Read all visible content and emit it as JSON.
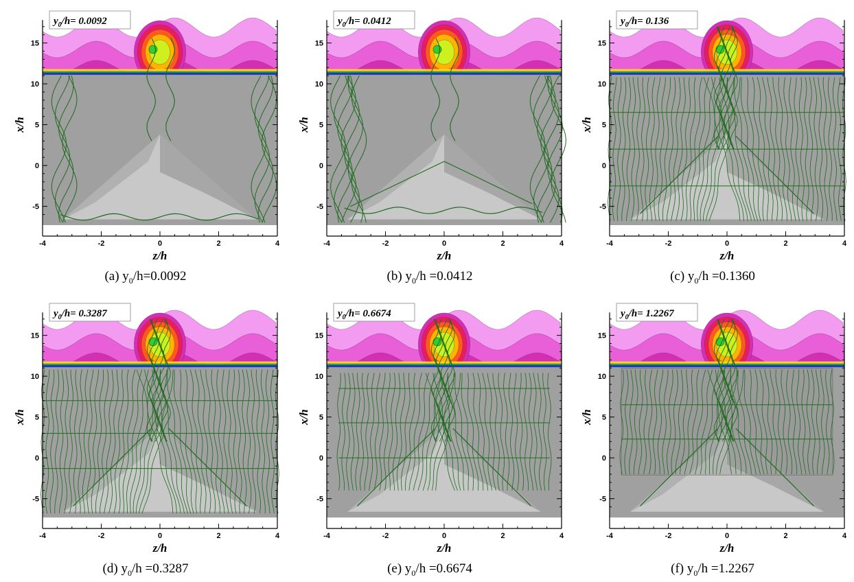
{
  "figure": {
    "x_axis_label": "z/h",
    "y_axis_label": "x/h",
    "x_ticks": [
      "-4",
      "-2",
      "0",
      "2",
      "4"
    ],
    "y_ticks": [
      "15",
      "10",
      "5",
      "0",
      "-5"
    ],
    "colors": {
      "contour_outer": "#f29bf0",
      "contour_2": "#e85fd8",
      "contour_3": "#d32fb4",
      "contour_4": "#e81e5a",
      "contour_5": "#ff5a1e",
      "contour_6": "#ffb400",
      "contour_core": "#cdf01e",
      "wall_band": "#1e3cb4",
      "floor": "#a0a0a0",
      "pyramid_light": "#c8c8c8",
      "pyramid_dark": "#8c8c8c",
      "streamline": "#1f6b1f"
    },
    "panels": [
      {
        "box_label": "y",
        "box_label_sub": "0",
        "box_label_value": "/h= 0.0092",
        "caption_prefix": "(a) y",
        "caption_sub": "0",
        "caption_suffix": "/h=0.0092",
        "mode": "a"
      },
      {
        "box_label": "y",
        "box_label_sub": "0",
        "box_label_value": "/h= 0.0412",
        "caption_prefix": "(b) y",
        "caption_sub": "0",
        "caption_suffix": "/h =0.0412",
        "mode": "b"
      },
      {
        "box_label": "y",
        "box_label_sub": "0",
        "box_label_value": "/h= 0.136",
        "caption_prefix": "(c) y",
        "caption_sub": "0",
        "caption_suffix": "/h =0.1360",
        "mode": "c"
      },
      {
        "box_label": "y",
        "box_label_sub": "0",
        "box_label_value": "/h= 0.3287",
        "caption_prefix": "(d) y",
        "caption_sub": "0",
        "caption_suffix": "/h =0.3287",
        "mode": "d"
      },
      {
        "box_label": "y",
        "box_label_sub": "0",
        "box_label_value": "/h= 0.6674",
        "caption_prefix": "(e) y",
        "caption_sub": "0",
        "caption_suffix": "/h =0.6674",
        "mode": "e"
      },
      {
        "box_label": "y",
        "box_label_sub": "0",
        "box_label_value": "/h= 1.2267",
        "caption_prefix": "(f) y",
        "caption_sub": "0",
        "caption_suffix": "/h =1.2267",
        "mode": "f"
      }
    ]
  }
}
